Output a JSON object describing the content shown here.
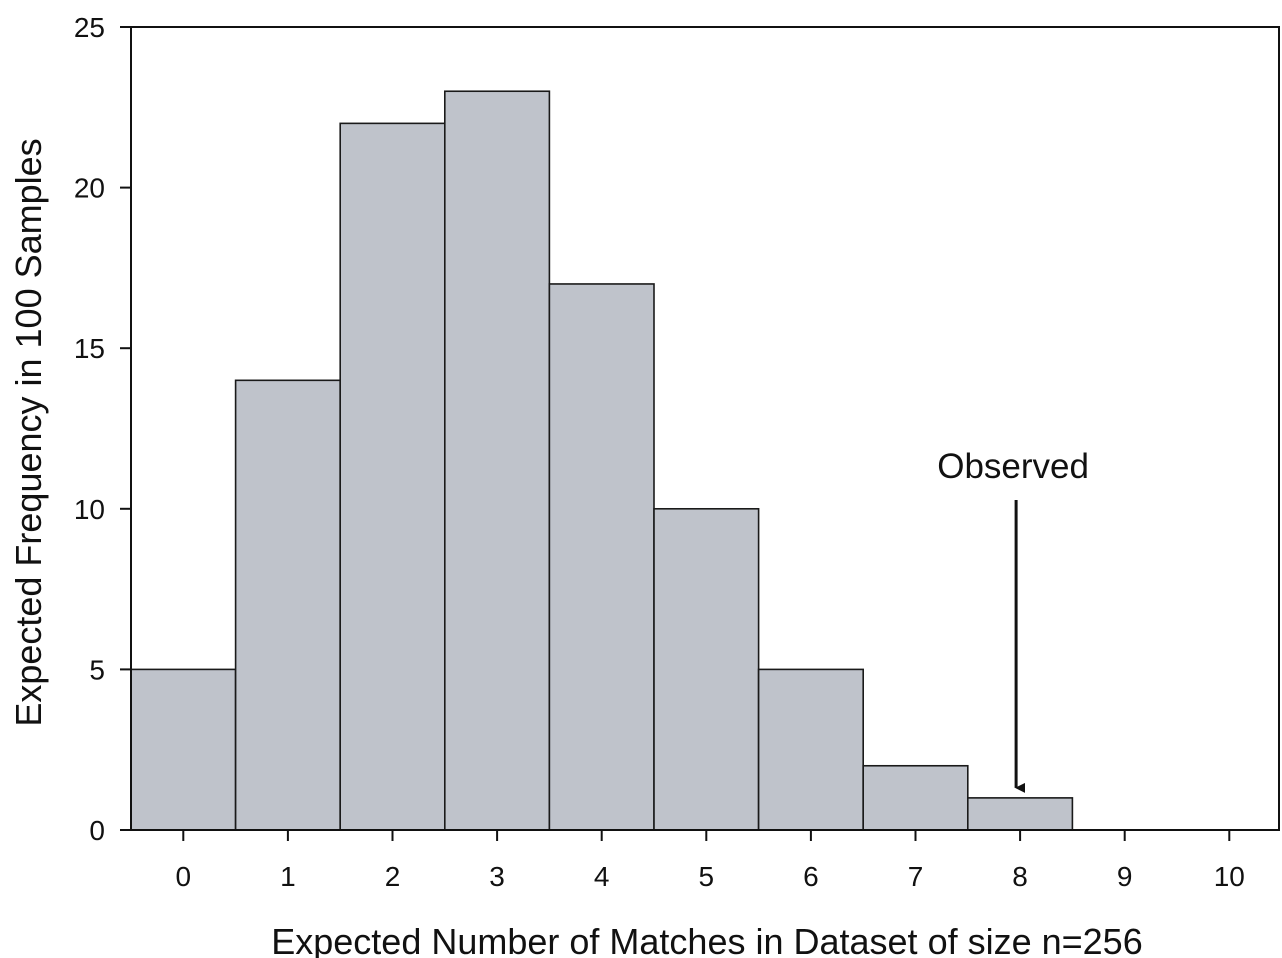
{
  "chart_data": {
    "type": "bar",
    "title": "",
    "xlabel": "Expected Number of Matches in Dataset of size n=256",
    "ylabel": "Expected Frequency in 100 Samples",
    "categories": [
      "0",
      "1",
      "2",
      "3",
      "4",
      "5",
      "6",
      "7",
      "8",
      "9",
      "10"
    ],
    "values": [
      5,
      14,
      22,
      23,
      17,
      10,
      5,
      2,
      1,
      0,
      0
    ],
    "ylim": [
      0,
      25
    ],
    "yticks": [
      "0",
      "5",
      "10",
      "15",
      "20",
      "25"
    ],
    "grid": false,
    "legend": "none",
    "bar_color": "#bfc3cb",
    "bar_edge_color": "#1a1a1a",
    "annotations": [
      {
        "text": "Observed",
        "category": "8",
        "arrow": "down"
      }
    ]
  }
}
